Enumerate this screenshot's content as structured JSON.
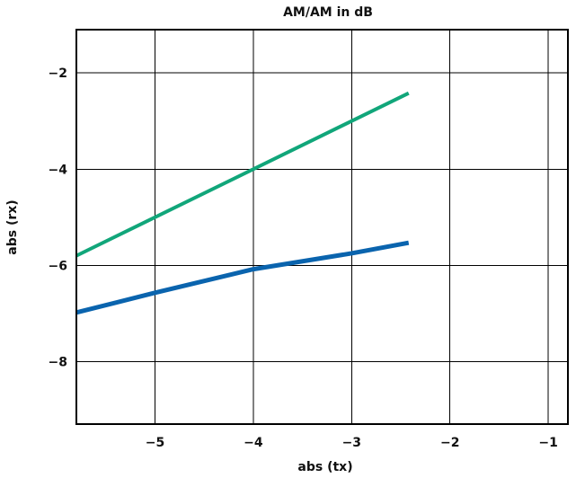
{
  "chart_data": {
    "type": "line",
    "title": "AM/AM in dB",
    "xlabel": "abs (tx)",
    "ylabel": "abs (rx)",
    "xlim": [
      -5.8,
      -0.8
    ],
    "ylim": [
      -9.3,
      -1.1
    ],
    "xticks": [
      -5,
      -4,
      -3,
      -2,
      -1
    ],
    "yticks": [
      -2,
      -4,
      -6,
      -8
    ],
    "xtick_labels": [
      "−5",
      "−4",
      "−3",
      "−2",
      "−1"
    ],
    "ytick_labels": [
      "−2",
      "−4",
      "−6",
      "−8"
    ],
    "grid": true,
    "legend": "none",
    "series": [
      {
        "color": "#11A67A",
        "x": [
          -5.8,
          -2.42
        ],
        "y": [
          -5.8,
          -2.42
        ]
      },
      {
        "color": "#0A64AE",
        "x": [
          -5.8,
          -5.0,
          -4.0,
          -3.0,
          -2.42
        ],
        "y": [
          -6.98,
          -6.57,
          -6.08,
          -5.75,
          -5.53
        ]
      }
    ]
  }
}
